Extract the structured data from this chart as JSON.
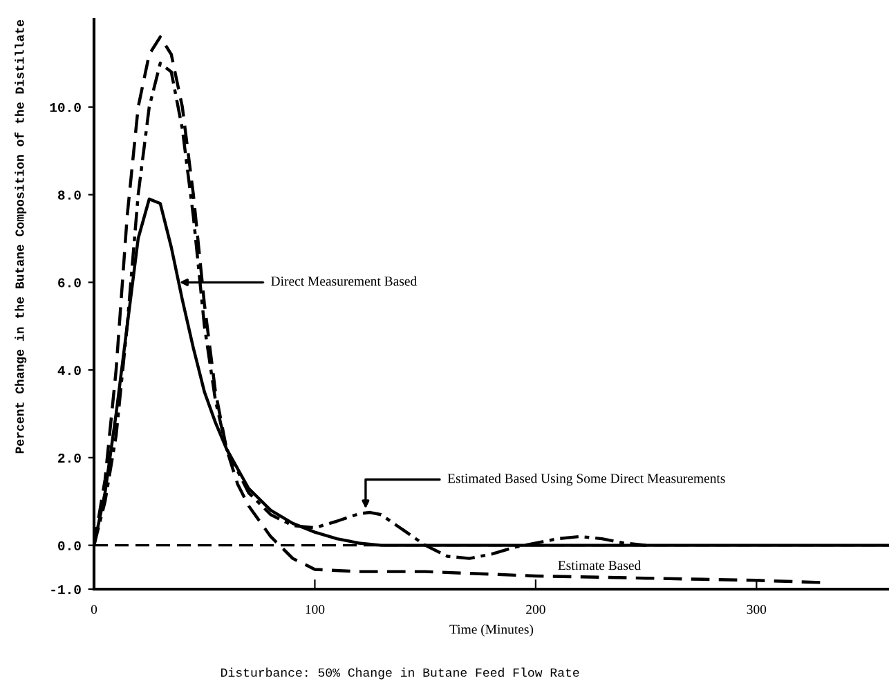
{
  "chart_data": {
    "type": "line",
    "xlabel": "Time (Minutes)",
    "ylabel": "Percent Change in the Butane Composition of the Distillate",
    "xlim": [
      0,
      360
    ],
    "xticks": [
      0,
      100,
      200,
      300
    ],
    "ylim": [
      -1,
      12
    ],
    "yticks": [
      {
        "value": -1,
        "label": "-1.0"
      },
      {
        "value": 0,
        "label": "0.0"
      },
      {
        "value": 2,
        "label": "2.0"
      },
      {
        "value": 4,
        "label": "4.0"
      },
      {
        "value": 6,
        "label": "6.0"
      },
      {
        "value": 8,
        "label": "8.0"
      },
      {
        "value": 10,
        "label": "10.0"
      }
    ],
    "grid": false,
    "legend": false,
    "series": [
      {
        "color": "#000000",
        "line_style": "solid",
        "x": [
          0,
          5,
          10,
          15,
          20,
          25,
          30,
          35,
          40,
          45,
          50,
          55,
          60,
          70,
          80,
          90,
          100,
          110,
          120,
          130,
          150,
          200,
          250,
          300,
          360
        ],
        "values": [
          0,
          1.2,
          3,
          5,
          7,
          7.9,
          7.8,
          6.8,
          5.6,
          4.5,
          3.5,
          2.8,
          2.2,
          1.3,
          0.8,
          0.5,
          0.3,
          0.15,
          0.05,
          0,
          0,
          0,
          0,
          0,
          0
        ]
      },
      {
        "color": "#000000",
        "line_style": "dashed",
        "x": [
          0,
          5,
          10,
          15,
          20,
          25,
          30,
          35,
          40,
          45,
          50,
          55,
          60,
          65,
          70,
          80,
          90,
          100,
          120,
          150,
          200,
          250,
          300,
          330
        ],
        "values": [
          0,
          1.5,
          4,
          7.5,
          10,
          11.2,
          11.6,
          11.2,
          10,
          8,
          5.5,
          3.5,
          2.2,
          1.4,
          0.9,
          0.2,
          -0.3,
          -0.55,
          -0.6,
          -0.6,
          -0.7,
          -0.75,
          -0.8,
          -0.85
        ]
      },
      {
        "color": "#000000",
        "line_style": "dashdot",
        "x": [
          0,
          5,
          10,
          15,
          20,
          25,
          30,
          35,
          40,
          45,
          50,
          55,
          60,
          70,
          80,
          90,
          100,
          110,
          120,
          125,
          130,
          140,
          150,
          160,
          170,
          180,
          190,
          200,
          210,
          220,
          230,
          240,
          250
        ],
        "values": [
          0,
          1,
          2.5,
          5,
          8,
          10,
          11,
          10.8,
          9.5,
          7.5,
          5,
          3.3,
          2.2,
          1.2,
          0.7,
          0.45,
          0.4,
          0.55,
          0.72,
          0.75,
          0.7,
          0.35,
          0,
          -0.25,
          -0.3,
          -0.2,
          -0.05,
          0.05,
          0.15,
          0.2,
          0.15,
          0.05,
          0
        ]
      }
    ],
    "ref_lines": [
      {
        "axis": "y",
        "value": 0,
        "color": "#000000",
        "line_style": "dashed"
      }
    ],
    "annotations": [
      {
        "text": "Direct Measurement Based",
        "x": 37,
        "y": 6.0
      },
      {
        "text": "Estimated Based Using Some Direct Measurements",
        "x": 123,
        "y": 0.75
      },
      {
        "text": "Estimate Based",
        "x": 210,
        "y": -0.8
      },
      "Disturbance: 50% Change in Butane Feed Flow Rate"
    ]
  }
}
